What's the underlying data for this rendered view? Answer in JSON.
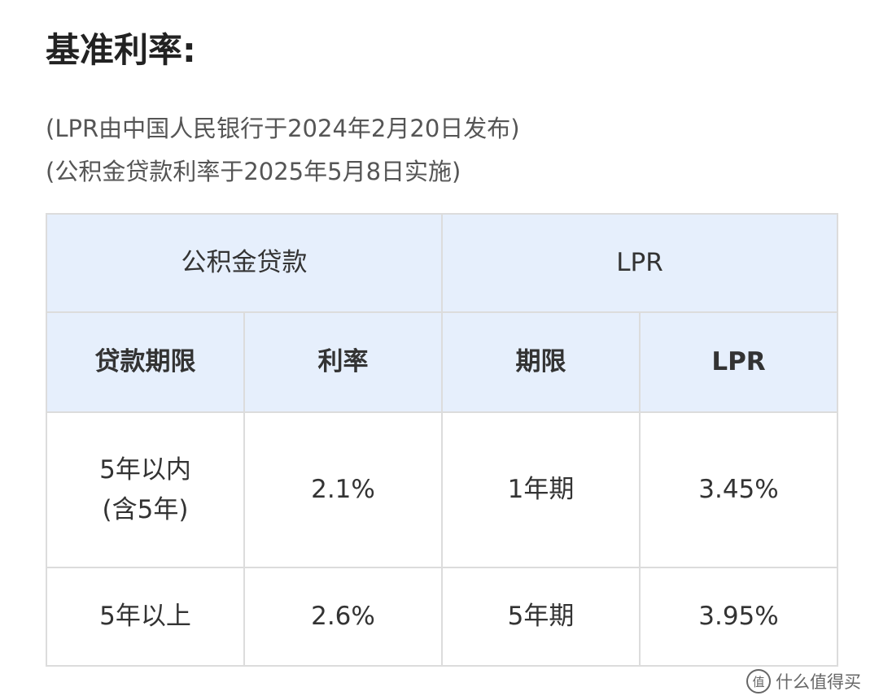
{
  "header": {
    "title": "基准利率:",
    "notes": [
      "(LPR由中国人民银行于2024年2月20日发布)",
      "(公积金贷款利率于2025年5月8日实施)"
    ]
  },
  "table": {
    "groups": [
      "公积金贷款",
      "LPR"
    ],
    "columns": [
      "贷款期限",
      "利率",
      "期限",
      "LPR"
    ],
    "rows": [
      [
        "5年以内\n(含5年)",
        "2.1%",
        "1年期",
        "3.45%"
      ],
      [
        "5年以上",
        "2.6%",
        "5年期",
        "3.95%"
      ]
    ]
  },
  "watermark": {
    "logo": "值",
    "text": "什么值得买"
  }
}
